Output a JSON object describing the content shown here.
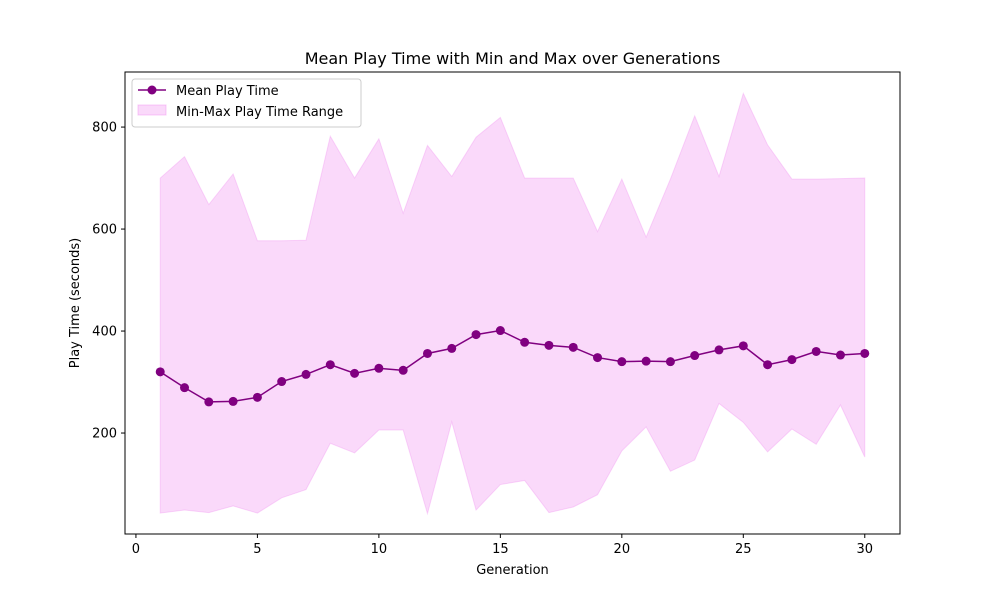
{
  "chart_data": {
    "type": "line",
    "title": "Mean Play Time with Min and Max over Generations",
    "xlabel": "Generation",
    "ylabel": "Play Time (seconds)",
    "xlim": [
      -0.45,
      31.45
    ],
    "ylim": [
      2,
      908
    ],
    "xticks": [
      0,
      5,
      10,
      15,
      20,
      25,
      30
    ],
    "yticks": [
      200,
      400,
      600,
      800
    ],
    "grid": false,
    "legend_position": "top-left",
    "x": [
      1,
      2,
      3,
      4,
      5,
      6,
      7,
      8,
      9,
      10,
      11,
      12,
      13,
      14,
      15,
      16,
      17,
      18,
      19,
      20,
      21,
      22,
      23,
      24,
      25,
      26,
      27,
      28,
      29,
      30
    ],
    "series": [
      {
        "name": "Mean Play Time",
        "kind": "line-marker",
        "color": "#800080",
        "values": [
          320,
          289,
          261,
          262,
          270,
          301,
          315,
          334,
          317,
          327,
          323,
          356,
          366,
          393,
          401,
          378,
          372,
          368,
          348,
          340,
          341,
          340,
          352,
          363,
          371,
          334,
          344,
          360,
          353,
          356
        ]
      },
      {
        "name": "Min-Max Play Time Range",
        "kind": "band",
        "color": "#ee82ee",
        "min": [
          43,
          49,
          44,
          57,
          43,
          73,
          89,
          180,
          161,
          206,
          206,
          42,
          222,
          49,
          99,
          107,
          44,
          55,
          79,
          165,
          212,
          125,
          147,
          258,
          221,
          163,
          208,
          178,
          255,
          153
        ],
        "max": [
          700,
          742,
          648,
          708,
          577,
          577,
          578,
          782,
          700,
          777,
          631,
          764,
          703,
          780,
          819,
          700,
          700,
          700,
          595,
          698,
          584,
          698,
          822,
          703,
          866,
          765,
          698,
          698,
          699,
          700
        ]
      }
    ]
  }
}
